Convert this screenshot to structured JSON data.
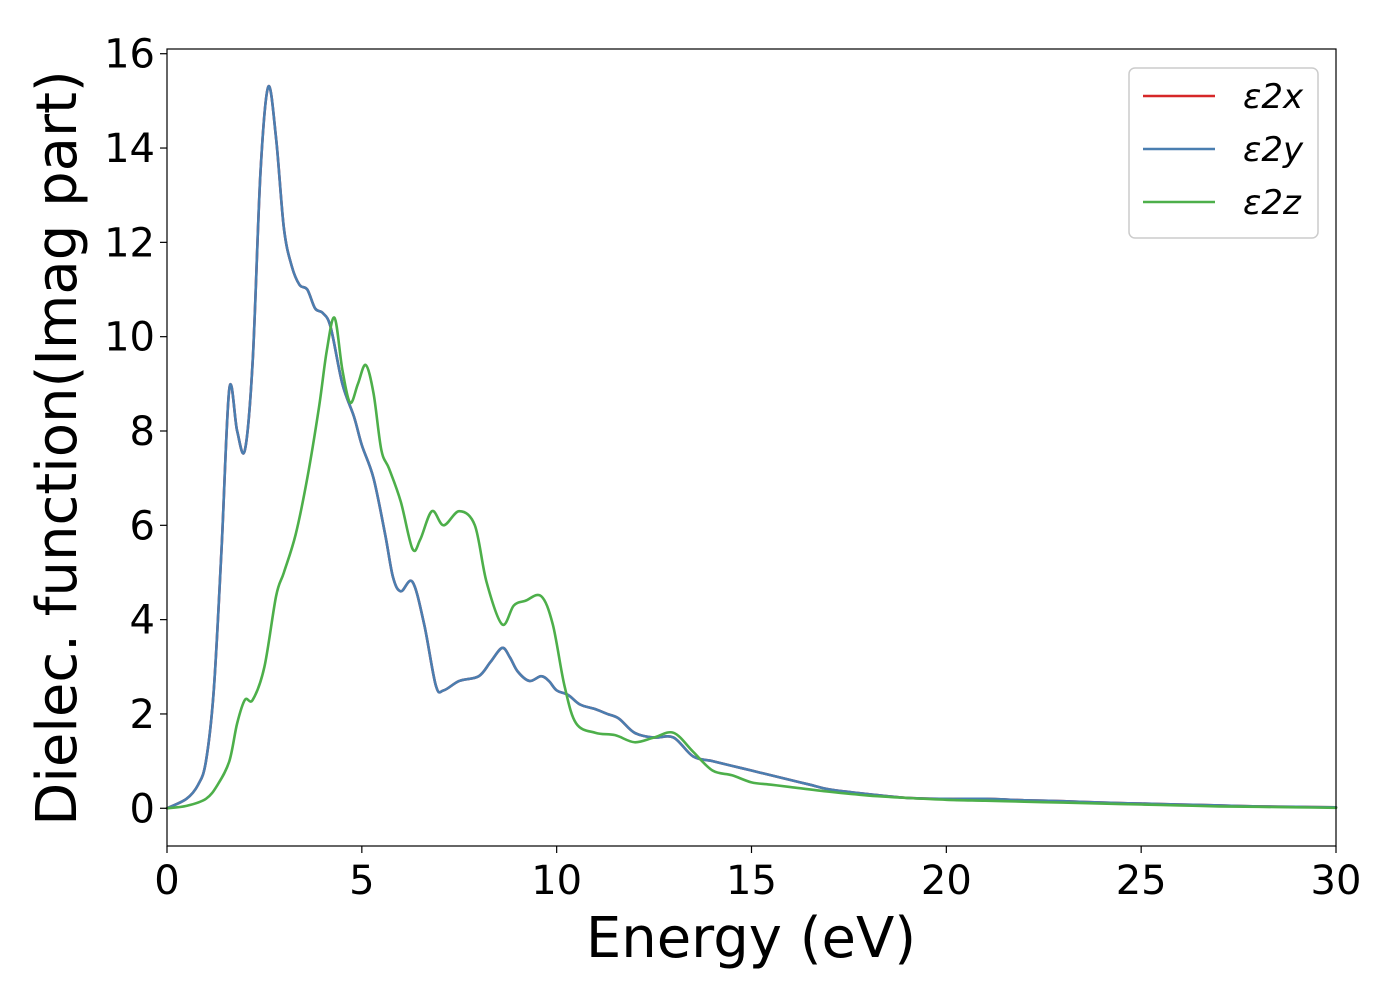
{
  "chart_data": {
    "type": "line",
    "title": "",
    "xlabel": "Energy (eV)",
    "ylabel": "Dielec. function(Imag part)",
    "xlim": [
      0,
      30
    ],
    "ylim": [
      -0.8,
      16.1
    ],
    "xticks": [
      0,
      5,
      10,
      15,
      20,
      25,
      30
    ],
    "yticks": [
      0,
      2,
      4,
      6,
      8,
      10,
      12,
      14,
      16
    ],
    "grid": false,
    "legend_position": "top-right",
    "series": [
      {
        "name": "ε2x",
        "color": "#d62728",
        "x": [
          0,
          0.5,
          0.8,
          1.0,
          1.2,
          1.4,
          1.6,
          1.8,
          2.0,
          2.2,
          2.4,
          2.6,
          2.8,
          3.0,
          3.2,
          3.4,
          3.6,
          3.8,
          4.0,
          4.2,
          4.5,
          4.8,
          5.0,
          5.3,
          5.6,
          5.8,
          6.0,
          6.3,
          6.6,
          6.9,
          7.1,
          7.5,
          8.0,
          8.3,
          8.6,
          8.8,
          9.0,
          9.3,
          9.6,
          9.8,
          10.0,
          10.3,
          10.6,
          11.0,
          11.3,
          11.6,
          12.0,
          12.5,
          13.0,
          13.5,
          14.0,
          14.5,
          15.0,
          15.5,
          16.0,
          16.5,
          17.0,
          18.0,
          19.0,
          20.0,
          21.0,
          22.0,
          23.0,
          24.0,
          25.0,
          26.0,
          27.0,
          28.0,
          29.0,
          30.0
        ],
        "y": [
          0.0,
          0.2,
          0.5,
          1.0,
          2.5,
          5.5,
          8.9,
          8.0,
          7.6,
          9.5,
          13.5,
          15.3,
          14.2,
          12.3,
          11.5,
          11.1,
          11.0,
          10.6,
          10.5,
          10.2,
          9.0,
          8.3,
          7.7,
          7.0,
          5.8,
          4.9,
          4.6,
          4.8,
          3.9,
          2.6,
          2.5,
          2.7,
          2.8,
          3.1,
          3.4,
          3.2,
          2.9,
          2.7,
          2.8,
          2.7,
          2.5,
          2.4,
          2.2,
          2.1,
          2.0,
          1.9,
          1.6,
          1.5,
          1.5,
          1.1,
          1.0,
          0.9,
          0.8,
          0.7,
          0.6,
          0.5,
          0.4,
          0.3,
          0.22,
          0.2,
          0.2,
          0.17,
          0.15,
          0.12,
          0.1,
          0.08,
          0.06,
          0.04,
          0.03,
          0.02
        ]
      },
      {
        "name": "ε2y",
        "color": "#4a7eb0",
        "x": [
          0,
          0.5,
          0.8,
          1.0,
          1.2,
          1.4,
          1.6,
          1.8,
          2.0,
          2.2,
          2.4,
          2.6,
          2.8,
          3.0,
          3.2,
          3.4,
          3.6,
          3.8,
          4.0,
          4.2,
          4.5,
          4.8,
          5.0,
          5.3,
          5.6,
          5.8,
          6.0,
          6.3,
          6.6,
          6.9,
          7.1,
          7.5,
          8.0,
          8.3,
          8.6,
          8.8,
          9.0,
          9.3,
          9.6,
          9.8,
          10.0,
          10.3,
          10.6,
          11.0,
          11.3,
          11.6,
          12.0,
          12.5,
          13.0,
          13.5,
          14.0,
          14.5,
          15.0,
          15.5,
          16.0,
          16.5,
          17.0,
          18.0,
          19.0,
          20.0,
          21.0,
          22.0,
          23.0,
          24.0,
          25.0,
          26.0,
          27.0,
          28.0,
          29.0,
          30.0
        ],
        "y": [
          0.0,
          0.2,
          0.5,
          1.0,
          2.5,
          5.5,
          8.9,
          8.0,
          7.6,
          9.5,
          13.5,
          15.3,
          14.2,
          12.3,
          11.5,
          11.1,
          11.0,
          10.6,
          10.5,
          10.2,
          9.0,
          8.3,
          7.7,
          7.0,
          5.8,
          4.9,
          4.6,
          4.8,
          3.9,
          2.6,
          2.5,
          2.7,
          2.8,
          3.1,
          3.4,
          3.2,
          2.9,
          2.7,
          2.8,
          2.7,
          2.5,
          2.4,
          2.2,
          2.1,
          2.0,
          1.9,
          1.6,
          1.5,
          1.5,
          1.1,
          1.0,
          0.9,
          0.8,
          0.7,
          0.6,
          0.5,
          0.4,
          0.3,
          0.22,
          0.2,
          0.2,
          0.17,
          0.15,
          0.12,
          0.1,
          0.08,
          0.06,
          0.04,
          0.03,
          0.02
        ]
      },
      {
        "name": "ε2z",
        "color": "#4daf4a",
        "x": [
          0,
          0.5,
          1.0,
          1.3,
          1.6,
          1.8,
          2.0,
          2.2,
          2.5,
          2.8,
          3.0,
          3.3,
          3.6,
          3.9,
          4.1,
          4.3,
          4.5,
          4.7,
          4.9,
          5.1,
          5.3,
          5.5,
          5.7,
          6.0,
          6.3,
          6.5,
          6.8,
          7.1,
          7.5,
          7.9,
          8.2,
          8.6,
          8.9,
          9.2,
          9.6,
          9.9,
          10.2,
          10.5,
          11.0,
          11.5,
          12.0,
          12.5,
          13.0,
          13.5,
          14.0,
          14.5,
          15.0,
          15.5,
          16.0,
          17.0,
          18.0,
          19.0,
          20.0,
          21.0,
          22.0,
          23.0,
          24.0,
          25.0,
          26.0,
          27.0,
          28.0,
          29.0,
          30.0
        ],
        "y": [
          0.0,
          0.05,
          0.2,
          0.5,
          1.0,
          1.8,
          2.3,
          2.3,
          3.0,
          4.5,
          5.0,
          5.8,
          7.0,
          8.5,
          9.7,
          10.4,
          9.3,
          8.6,
          9.0,
          9.4,
          8.8,
          7.6,
          7.2,
          6.5,
          5.5,
          5.7,
          6.3,
          6.0,
          6.3,
          6.0,
          4.8,
          3.9,
          4.3,
          4.4,
          4.5,
          3.9,
          2.6,
          1.8,
          1.6,
          1.55,
          1.4,
          1.5,
          1.6,
          1.2,
          0.8,
          0.7,
          0.55,
          0.5,
          0.45,
          0.35,
          0.27,
          0.22,
          0.18,
          0.16,
          0.14,
          0.12,
          0.1,
          0.08,
          0.06,
          0.04,
          0.03,
          0.02,
          0.01
        ]
      }
    ]
  }
}
